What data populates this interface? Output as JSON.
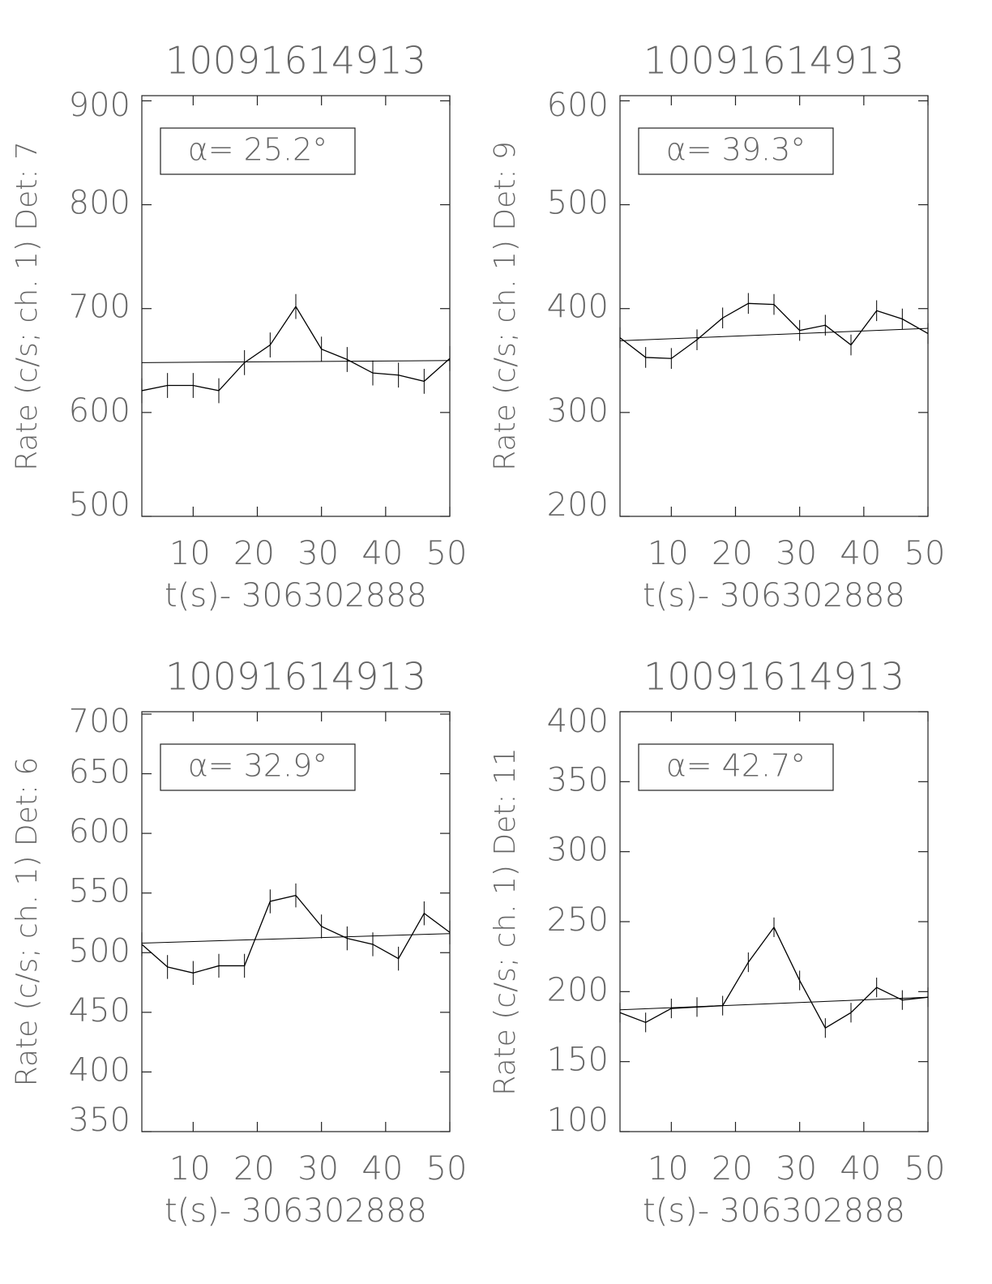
{
  "chart_data": [
    {
      "type": "line",
      "title": "10091614913",
      "xlabel": "t(s)- 306302888",
      "ylabel": "Rate (c/s; ch. 1) Det: 7",
      "annotation": "α= 25.2°",
      "x": [
        2,
        6,
        10,
        14,
        18,
        22,
        26,
        30,
        34,
        38,
        42,
        46,
        50
      ],
      "values": [
        621,
        626,
        626,
        621,
        648,
        665,
        702,
        661,
        651,
        638,
        636,
        630,
        652
      ],
      "errors": [
        12,
        12,
        12,
        12,
        12,
        12,
        12,
        12,
        12,
        12,
        12,
        12,
        12
      ],
      "fit_x": [
        2,
        50
      ],
      "fit_values": [
        648,
        650
      ],
      "color": "#000000",
      "xlim": [
        2,
        50
      ],
      "ylim": [
        500,
        905
      ],
      "xticks": [
        10,
        20,
        30,
        40,
        50
      ],
      "yticks": [
        500,
        600,
        700,
        800,
        900
      ]
    },
    {
      "type": "line",
      "title": "10091614913",
      "xlabel": "t(s)- 306302888",
      "ylabel": "Rate (c/s; ch. 1) Det: 9",
      "annotation": "α= 39.3°",
      "x": [
        2,
        6,
        10,
        14,
        18,
        22,
        26,
        30,
        34,
        38,
        42,
        46,
        50
      ],
      "values": [
        372,
        353,
        352,
        370,
        391,
        405,
        404,
        379,
        384,
        365,
        398,
        390,
        376
      ],
      "errors": [
        10,
        10,
        10,
        10,
        10,
        10,
        10,
        10,
        10,
        10,
        10,
        10,
        10
      ],
      "fit_x": [
        2,
        50
      ],
      "fit_values": [
        369,
        381
      ],
      "color": "#000000",
      "xlim": [
        2,
        50
      ],
      "ylim": [
        200,
        605
      ],
      "xticks": [
        10,
        20,
        30,
        40,
        50
      ],
      "yticks": [
        200,
        300,
        400,
        500,
        600
      ]
    },
    {
      "type": "line",
      "title": "10091614913",
      "xlabel": "t(s)- 306302888",
      "ylabel": "Rate (c/s; ch. 1) Det: 6",
      "annotation": "α= 32.9°",
      "x": [
        2,
        6,
        10,
        14,
        18,
        22,
        26,
        30,
        34,
        38,
        42,
        46,
        50
      ],
      "values": [
        507,
        488,
        483,
        489,
        489,
        543,
        548,
        522,
        512,
        507,
        495,
        533,
        517
      ],
      "errors": [
        10,
        10,
        10,
        10,
        10,
        10,
        10,
        10,
        10,
        10,
        10,
        10,
        10
      ],
      "fit_x": [
        2,
        50
      ],
      "fit_values": [
        508,
        516
      ],
      "color": "#000000",
      "xlim": [
        2,
        50
      ],
      "ylim": [
        350,
        702
      ],
      "xticks": [
        10,
        20,
        30,
        40,
        50
      ],
      "yticks": [
        350,
        400,
        450,
        500,
        550,
        600,
        650,
        700
      ]
    },
    {
      "type": "line",
      "title": "10091614913",
      "xlabel": "t(s)- 306302888",
      "ylabel": "Rate (c/s; ch. 1) Det: 11",
      "annotation": "α= 42.7°",
      "x": [
        2,
        6,
        10,
        14,
        18,
        22,
        26,
        30,
        34,
        38,
        42,
        46,
        50
      ],
      "values": [
        185,
        178,
        188,
        189,
        190,
        221,
        246,
        208,
        174,
        185,
        203,
        194,
        196
      ],
      "errors": [
        7,
        7,
        7,
        7,
        7,
        7,
        7,
        7,
        7,
        7,
        7,
        7,
        7
      ],
      "fit_x": [
        2,
        50
      ],
      "fit_values": [
        187,
        196
      ],
      "color": "#000000",
      "xlim": [
        2,
        50
      ],
      "ylim": [
        100,
        400
      ],
      "xticks": [
        10,
        20,
        30,
        40,
        50
      ],
      "yticks": [
        100,
        150,
        200,
        250,
        300,
        350,
        400
      ]
    }
  ]
}
